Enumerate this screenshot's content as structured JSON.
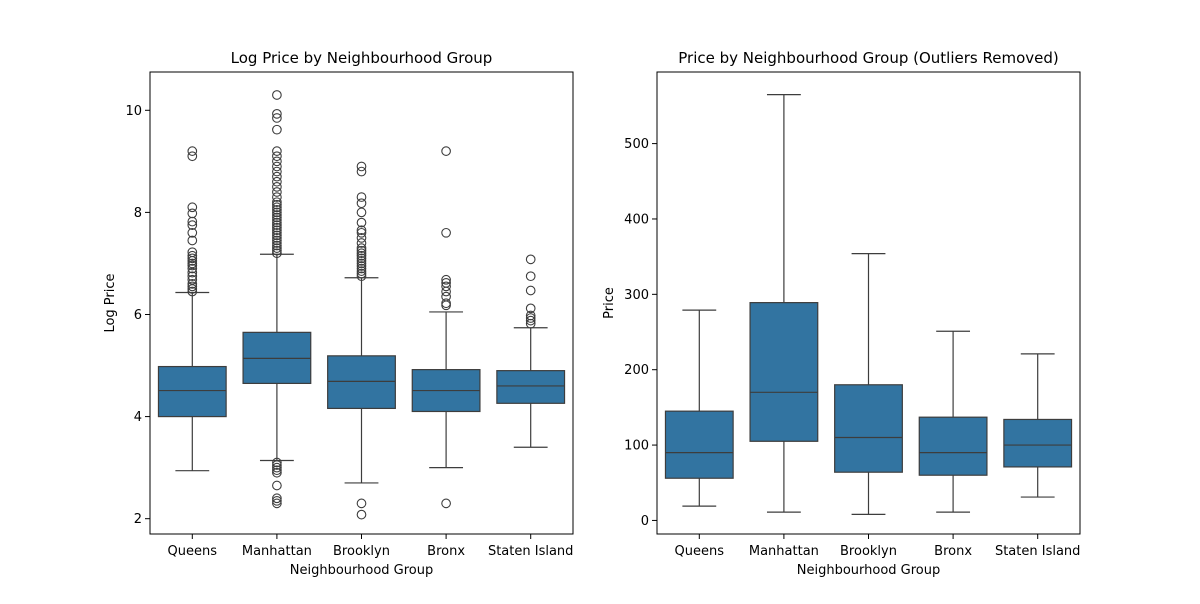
{
  "chart_data": [
    {
      "type": "box",
      "title": "Log Price by Neighbourhood Group",
      "xlabel": "Neighbourhood Group",
      "ylabel": "Log Price",
      "ylim": [
        1.7,
        10.75
      ],
      "yticks": [
        2,
        4,
        6,
        8,
        10
      ],
      "categories": [
        "Queens",
        "Manhattan",
        "Brooklyn",
        "Bronx",
        "Staten Island"
      ],
      "color": "#3274a1",
      "boxes": [
        {
          "whislo": 2.94,
          "q1": 4.0,
          "med": 4.51,
          "q3": 4.98,
          "whishi": 6.43,
          "fliers": [
            6.45,
            6.5,
            6.55,
            6.6,
            6.68,
            6.75,
            6.82,
            6.9,
            6.96,
            7.0,
            7.05,
            7.1,
            7.15,
            7.22,
            7.45,
            7.6,
            7.75,
            7.82,
            7.98,
            8.1,
            9.1,
            9.2
          ]
        },
        {
          "whislo": 3.14,
          "q1": 4.65,
          "med": 5.14,
          "q3": 5.65,
          "whishi": 7.18,
          "fliers": [
            2.3,
            2.35,
            2.4,
            2.65,
            2.9,
            2.95,
            3.0,
            3.05,
            3.1,
            7.2,
            7.25,
            7.3,
            7.35,
            7.4,
            7.45,
            7.5,
            7.55,
            7.6,
            7.65,
            7.7,
            7.75,
            7.8,
            7.85,
            7.9,
            7.95,
            8.0,
            8.05,
            8.1,
            8.15,
            8.2,
            8.3,
            8.4,
            8.5,
            8.6,
            8.7,
            8.8,
            8.9,
            9.0,
            9.1,
            9.2,
            9.62,
            9.85,
            9.93,
            10.3
          ]
        },
        {
          "whislo": 2.7,
          "q1": 4.16,
          "med": 4.69,
          "q3": 5.19,
          "whishi": 6.72,
          "fliers": [
            2.08,
            2.3,
            6.75,
            6.8,
            6.85,
            6.9,
            6.95,
            7.0,
            7.05,
            7.1,
            7.15,
            7.2,
            7.25,
            7.3,
            7.4,
            7.5,
            7.6,
            7.65,
            7.8,
            8.0,
            8.18,
            8.3,
            8.8,
            8.9
          ]
        },
        {
          "whislo": 3.0,
          "q1": 4.1,
          "med": 4.51,
          "q3": 4.92,
          "whishi": 6.05,
          "fliers": [
            2.3,
            6.18,
            6.22,
            6.35,
            6.45,
            6.55,
            6.62,
            6.68,
            7.6,
            9.2
          ]
        },
        {
          "whislo": 3.4,
          "q1": 4.26,
          "med": 4.6,
          "q3": 4.9,
          "whishi": 5.74,
          "fliers": [
            5.82,
            5.88,
            5.93,
            5.98,
            6.12,
            6.47,
            6.75,
            7.08
          ]
        }
      ]
    },
    {
      "type": "box",
      "title": "Price by Neighbourhood Group (Outliers Removed)",
      "xlabel": "Neighbourhood Group",
      "ylabel": "Price",
      "ylim": [
        -18,
        595
      ],
      "yticks": [
        0,
        100,
        200,
        300,
        400,
        500
      ],
      "categories": [
        "Queens",
        "Manhattan",
        "Brooklyn",
        "Bronx",
        "Staten Island"
      ],
      "color": "#3274a1",
      "boxes": [
        {
          "whislo": 19,
          "q1": 56,
          "med": 90,
          "q3": 145,
          "whishi": 279,
          "fliers": []
        },
        {
          "whislo": 11,
          "q1": 105,
          "med": 170,
          "q3": 289,
          "whishi": 565,
          "fliers": []
        },
        {
          "whislo": 8,
          "q1": 64,
          "med": 110,
          "q3": 180,
          "whishi": 354,
          "fliers": []
        },
        {
          "whislo": 11,
          "q1": 60,
          "med": 90,
          "q3": 137,
          "whishi": 251,
          "fliers": []
        },
        {
          "whislo": 31,
          "q1": 71,
          "med": 100,
          "q3": 134,
          "whishi": 221,
          "fliers": []
        }
      ]
    }
  ]
}
